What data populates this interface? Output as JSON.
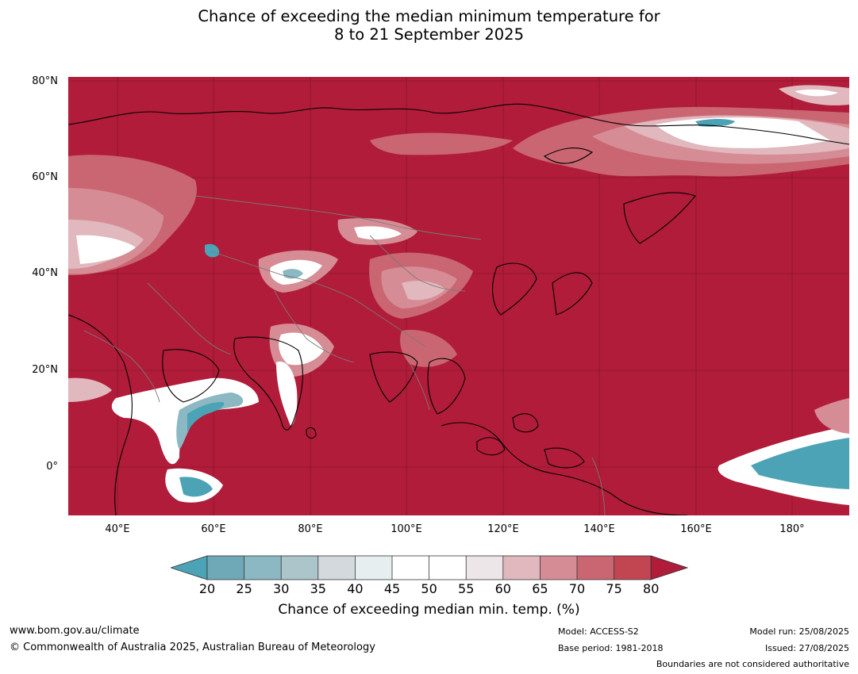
{
  "title": {
    "line1": "Chance of exceeding the median minimum temperature for",
    "line2": "8 to 21 September 2025"
  },
  "axes": {
    "lat_ticks": [
      "80°N",
      "60°N",
      "40°N",
      "20°N",
      "0°"
    ],
    "lon_ticks": [
      "40°E",
      "60°E",
      "80°E",
      "100°E",
      "120°E",
      "140°E",
      "160°E",
      "180°"
    ]
  },
  "colors": {
    "ocean_high": "#b01c39",
    "bin_75_80": "#c24552",
    "bin_70_75": "#c96672",
    "bin_65_70": "#d68c95",
    "bin_60_65": "#e0b8bd",
    "bin_55_60": "#ece6e8",
    "bin_45_55": "#ffffff",
    "bin_40_45": "#e7eef0",
    "bin_35_40": "#d3d9dc",
    "bin_30_35": "#abc5ca",
    "bin_25_30": "#8bb8c2",
    "bin_20_25": "#6fa9b7",
    "below_20": "#4ba3b5",
    "coastline": "#000000",
    "borders": "#7a7a7a"
  },
  "colorbar": {
    "ticks": [
      "20",
      "25",
      "30",
      "35",
      "40",
      "45",
      "50",
      "55",
      "60",
      "65",
      "70",
      "75",
      "80"
    ],
    "label": "Chance of exceeding median min. temp. (%)"
  },
  "footer": {
    "url": "www.bom.gov.au/climate",
    "copyright": "© Commonwealth of Australia 2025, Australian Bureau of Meteorology",
    "model": "Model: ACCESS-S2",
    "base_period": "Base period: 1981-2018",
    "model_run": "Model run: 25/08/2025",
    "issued": "Issued: 27/08/2025",
    "disclaimer": "Boundaries are not considered authoritative"
  }
}
